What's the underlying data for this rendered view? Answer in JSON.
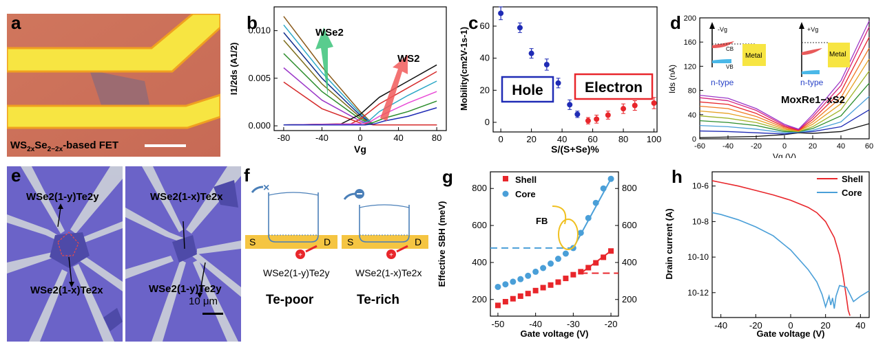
{
  "panel_labels": {
    "a": "a",
    "b": "b",
    "c": "c",
    "d": "d",
    "e": "e",
    "f": "f",
    "g": "g",
    "h": "h"
  },
  "colors": {
    "red": "#e8262b",
    "blue": "#1f2bb5",
    "skyblue": "#4a9fd8",
    "green": "#3cc37a",
    "salmon": "#f15a5a"
  },
  "panel_a": {
    "caption": "WS2xSe2−2x-based FET",
    "caption_parts": [
      "WS",
      "2x",
      "Se",
      "2−2x",
      "-based FET"
    ]
  },
  "panel_b": {
    "ylabel": "I1/2ds (A1/2)",
    "xlabel": "Vg",
    "wse2_label": "WSe2",
    "ws2_label": "WS2",
    "xticks": [
      "-80",
      "-40",
      "0",
      "40",
      "80"
    ],
    "yticks": [
      "0.000",
      "0.005",
      "0.010"
    ]
  },
  "panel_c": {
    "ylabel": "Mobility(cm2V-1s-1)",
    "xlabel": "S/(S+Se)%",
    "hole_label": "Hole",
    "electron_label": "Electron",
    "xticks": [
      "0",
      "20",
      "40",
      "60",
      "80",
      "100"
    ],
    "yticks": [
      "0",
      "20",
      "40",
      "60"
    ]
  },
  "panel_d": {
    "ylabel": "Ids (nA)",
    "xlabel": "Vg (V)",
    "title": "MoxRe1−xS2",
    "xticks": [
      "-60",
      "-40",
      "-20",
      "0",
      "20",
      "40",
      "60"
    ],
    "yticks": [
      "0",
      "40",
      "80",
      "120",
      "160",
      "200"
    ],
    "inset_left": {
      "vg": "-Vg",
      "cb": "CB",
      "vb": "VB",
      "metal": "Metal",
      "type": "n-type"
    },
    "inset_right": {
      "vg": "+Vg",
      "metal": "Metal",
      "type": "n-type"
    }
  },
  "panel_e": {
    "left": {
      "top": "WSe2(1-y)Te2y",
      "bottom": "WSe2(1-x)Te2x"
    },
    "right": {
      "top": "WSe2(1-x)Te2x",
      "bottom": "WSe2(1-y)Te2y"
    },
    "scale": "10 μm"
  },
  "panel_f": {
    "left": {
      "s": "S",
      "d": "D",
      "formula": "WSe2(1-y)Te2y",
      "title": "Te-poor"
    },
    "right": {
      "s": "S",
      "d": "D",
      "formula": "WSe2(1-x)Te2x",
      "title": "Te-rich"
    }
  },
  "panel_g": {
    "ylabel": "Effective SBH (meV)",
    "xlabel": "Gate voltage (V)",
    "legend": [
      "Shell",
      "Core"
    ],
    "annotation": "FB",
    "xticks": [
      "-50",
      "-40",
      "-30",
      "-20"
    ],
    "yticks_left": [
      "200",
      "400",
      "600",
      "800"
    ],
    "yticks_right": [
      "200",
      "400",
      "600",
      "800"
    ]
  },
  "panel_h": {
    "ylabel": "Drain current (A)",
    "xlabel": "Gate voltage (V)",
    "legend": [
      "Shell",
      "Core"
    ],
    "xticks": [
      "-40",
      "-20",
      "0",
      "20",
      "40"
    ],
    "yticks": [
      "10-12",
      "10-10",
      "10-8",
      "10-6"
    ]
  },
  "chart_data": [
    {
      "type": "scatter",
      "panel": "c",
      "xlabel": "S/(S+Se)%",
      "ylabel": "Mobility(cm2V-1s-1)",
      "xlim": [
        -5,
        102
      ],
      "ylim": [
        -6,
        72
      ],
      "series": [
        {
          "name": "Hole",
          "color": "#1f2bb5",
          "x": [
            0,
            12.5,
            20,
            30,
            37.5,
            45,
            50
          ],
          "y": [
            68,
            59,
            43,
            36,
            24.5,
            11,
            5
          ],
          "err": [
            4,
            3,
            3,
            3.5,
            3,
            3,
            2
          ]
        },
        {
          "name": "Electron",
          "color": "#e8262b",
          "x": [
            57,
            62.5,
            70,
            80,
            87.5,
            100
          ],
          "y": [
            1,
            2,
            4.5,
            8.5,
            10.5,
            12
          ],
          "err": [
            2,
            2.5,
            2.5,
            3,
            3,
            3.5
          ]
        }
      ]
    },
    {
      "type": "scatter",
      "panel": "g",
      "xlabel": "Gate voltage (V)",
      "ylabel": "Effective SBH (meV)",
      "xlim": [
        -52,
        -18
      ],
      "ylim": [
        110,
        890
      ],
      "series": [
        {
          "name": "Shell",
          "marker": "square",
          "color": "#e8262b",
          "x": [
            -50,
            -48,
            -46,
            -44,
            -42,
            -40,
            -38,
            -36,
            -34,
            -32,
            -30,
            -28,
            -26,
            -24,
            -22,
            -20
          ],
          "y": [
            168,
            188,
            204,
            218,
            232,
            248,
            264,
            278,
            294,
            314,
            334,
            350,
            372,
            398,
            428,
            462
          ]
        },
        {
          "name": "Core",
          "marker": "circle",
          "color": "#4a9fd8",
          "x": [
            -50,
            -48,
            -46,
            -44,
            -42,
            -40,
            -38,
            -36,
            -34,
            -32,
            -30,
            -28,
            -26,
            -24,
            -22,
            -20
          ],
          "y": [
            268,
            282,
            296,
            310,
            328,
            350,
            370,
            394,
            420,
            448,
            478,
            560,
            640,
            722,
            800,
            852
          ]
        }
      ]
    },
    {
      "type": "line",
      "panel": "h",
      "xlabel": "Gate voltage (V)",
      "ylabel": "Drain current (A)",
      "xlim": [
        -45,
        45
      ],
      "ylim_log10": [
        -13.4,
        -5.2
      ],
      "series": [
        {
          "name": "Shell",
          "color": "#e8262b",
          "x": [
            -45,
            -40,
            -30,
            -20,
            -10,
            0,
            10,
            15,
            20,
            25,
            28,
            30,
            32,
            33,
            34
          ],
          "logy": [
            -5.7,
            -5.8,
            -6.0,
            -6.25,
            -6.5,
            -6.8,
            -7.2,
            -7.5,
            -8.0,
            -8.9,
            -9.9,
            -11.0,
            -12.3,
            -13.0,
            -13.3
          ]
        },
        {
          "name": "Core",
          "color": "#4a9fd8",
          "x": [
            -45,
            -40,
            -30,
            -20,
            -10,
            0,
            10,
            15,
            18,
            20,
            22,
            23,
            24,
            25,
            26,
            28,
            32,
            36,
            40,
            45
          ],
          "logy": [
            -7.5,
            -7.6,
            -7.9,
            -8.3,
            -8.8,
            -9.6,
            -10.7,
            -11.4,
            -12.1,
            -12.8,
            -12.2,
            -12.7,
            -12.3,
            -12.9,
            -12.2,
            -11.6,
            -11.7,
            -12.5,
            -12.2,
            -11.9
          ]
        }
      ]
    },
    {
      "type": "line",
      "panel": "b",
      "xlabel": "Vg",
      "ylabel": "I1/2ds (A1/2)",
      "xlim": [
        -90,
        90
      ],
      "ylim": [
        -0.0005,
        0.0125
      ],
      "series": [
        {
          "color": "#8a5a1a",
          "x": [
            -80,
            -40,
            0,
            14,
            80
          ],
          "y": [
            0.0115,
            0.0062,
            0.0015,
            0.0001,
            0.0001
          ]
        },
        {
          "color": "#2aa7c6",
          "x": [
            -80,
            -40,
            0,
            14,
            80
          ],
          "y": [
            0.0106,
            0.0056,
            0.0013,
            0.0001,
            0.0001
          ]
        },
        {
          "color": "#0f2d8a",
          "x": [
            -80,
            -40,
            0,
            14,
            80
          ],
          "y": [
            0.0098,
            0.005,
            0.0011,
            0.0001,
            0.0001
          ]
        },
        {
          "color": "#7b6c1a",
          "x": [
            -80,
            -40,
            0,
            14,
            80
          ],
          "y": [
            0.009,
            0.0044,
            0.0009,
            0.0001,
            0.0001
          ]
        },
        {
          "color": "#2a8c2a",
          "x": [
            -80,
            -40,
            0,
            14,
            80
          ],
          "y": [
            0.0076,
            0.0036,
            0.0007,
            0.0001,
            0.0001
          ]
        },
        {
          "color": "#9b37c8",
          "x": [
            -80,
            -40,
            0,
            14,
            80
          ],
          "y": [
            0.0061,
            0.0027,
            0.0005,
            0.0001,
            0.0001
          ]
        },
        {
          "color": "#d52a2a",
          "x": [
            -80,
            -40,
            0,
            14,
            80
          ],
          "y": [
            0.0046,
            0.0018,
            0.0003,
            0.0001,
            0.0001
          ]
        },
        {
          "color": "#111111",
          "x": [
            -80,
            -20,
            0,
            20,
            50,
            80
          ],
          "y": [
            0.0001,
            0.0002,
            0.0012,
            0.003,
            0.0047,
            0.0064
          ]
        },
        {
          "color": "#d52a2a",
          "x": [
            -80,
            -10,
            0,
            20,
            50,
            80
          ],
          "y": [
            0.0001,
            0.0002,
            0.0007,
            0.0023,
            0.004,
            0.0057
          ]
        },
        {
          "color": "#2aa7c6",
          "x": [
            -80,
            0,
            10,
            20,
            50,
            80
          ],
          "y": [
            0.0001,
            0.0002,
            0.0006,
            0.0015,
            0.0032,
            0.0047
          ]
        },
        {
          "color": "#e84ad6",
          "x": [
            -80,
            0,
            10,
            20,
            50,
            80
          ],
          "y": [
            0.0001,
            0.0002,
            0.0004,
            0.001,
            0.0024,
            0.0036
          ]
        },
        {
          "color": "#2a8c2a",
          "x": [
            -80,
            5,
            15,
            25,
            50,
            80
          ],
          "y": [
            0.0001,
            0.0001,
            0.0004,
            0.0008,
            0.0015,
            0.0026
          ]
        },
        {
          "color": "#1f2bb5",
          "x": [
            -80,
            5,
            15,
            25,
            50,
            80
          ],
          "y": [
            0.0001,
            0.0001,
            0.0002,
            0.0005,
            0.001,
            0.0019
          ]
        }
      ]
    },
    {
      "type": "line",
      "panel": "d",
      "xlabel": "Vg (V)",
      "ylabel": "Ids (nA)",
      "xlim": [
        -60,
        60
      ],
      "ylim": [
        0,
        200
      ],
      "series": [
        {
          "color": "#111111",
          "x": [
            -60,
            -40,
            -20,
            0,
            10,
            20,
            40,
            60
          ],
          "y": [
            2,
            3,
            4,
            7,
            10,
            9,
            12,
            25
          ]
        },
        {
          "color": "#1f2bb5",
          "x": [
            -60,
            -40,
            -20,
            0,
            10,
            20,
            40,
            60
          ],
          "y": [
            13,
            12,
            10,
            8,
            11,
            12,
            20,
            48
          ]
        },
        {
          "color": "#4a9fd8",
          "x": [
            -60,
            -40,
            -20,
            0,
            10,
            20,
            40,
            60
          ],
          "y": [
            22,
            20,
            16,
            10,
            11,
            14,
            28,
            70
          ]
        },
        {
          "color": "#2a8c2a",
          "x": [
            -60,
            -40,
            -20,
            0,
            10,
            20,
            40,
            60
          ],
          "y": [
            30,
            27,
            22,
            12,
            12,
            17,
            38,
            92
          ]
        },
        {
          "color": "#a0b428",
          "x": [
            -60,
            -40,
            -20,
            0,
            10,
            20,
            40,
            60
          ],
          "y": [
            38,
            34,
            27,
            14,
            12,
            20,
            48,
            112
          ]
        },
        {
          "color": "#e6a020",
          "x": [
            -60,
            -40,
            -20,
            0,
            10,
            20,
            40,
            60
          ],
          "y": [
            46,
            42,
            32,
            16,
            13,
            24,
            58,
            132
          ]
        },
        {
          "color": "#f07a22",
          "x": [
            -60,
            -40,
            -20,
            0,
            10,
            20,
            40,
            60
          ],
          "y": [
            54,
            50,
            37,
            18,
            13,
            28,
            68,
            150
          ]
        },
        {
          "color": "#e8262b",
          "x": [
            -60,
            -40,
            -20,
            0,
            10,
            20,
            40,
            60
          ],
          "y": [
            61,
            57,
            42,
            20,
            14,
            32,
            78,
            168
          ]
        },
        {
          "color": "#d61f7a",
          "x": [
            -60,
            -40,
            -20,
            0,
            10,
            20,
            40,
            60
          ],
          "y": [
            68,
            63,
            47,
            22,
            15,
            36,
            88,
            185
          ]
        },
        {
          "color": "#9b37c8",
          "x": [
            -60,
            -40,
            -20,
            0,
            10,
            20,
            40,
            60
          ],
          "y": [
            72,
            67,
            50,
            24,
            16,
            40,
            96,
            195
          ]
        }
      ]
    }
  ]
}
